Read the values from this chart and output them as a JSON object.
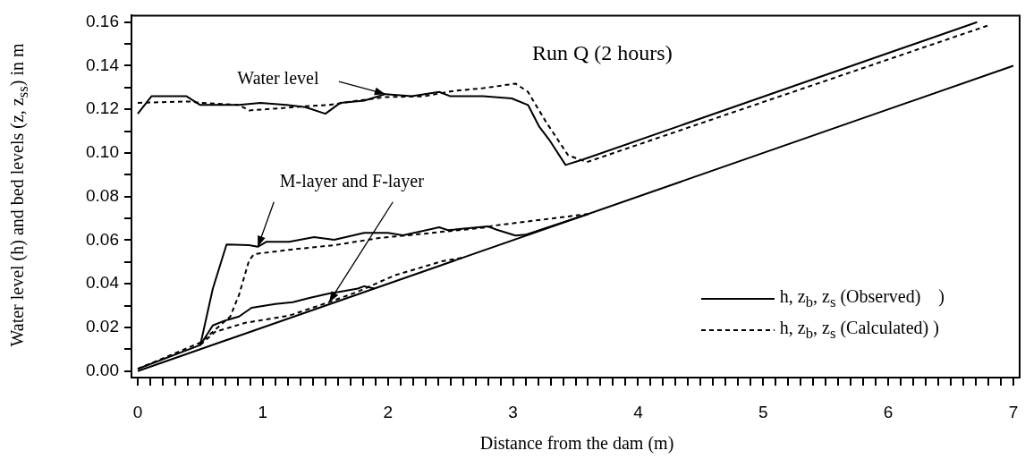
{
  "chart_data": {
    "type": "line",
    "title": "Run Q (2 hours)",
    "xlabel": "Distance from the dam (m)",
    "ylabel": "Water level (h) and bed levels (z, z$_{ss}$) in m",
    "xlim": [
      -0.05,
      7.05
    ],
    "ylim": [
      -0.003,
      0.163
    ],
    "xticks": [
      0,
      {
        "value": 0.1,
        "label": null
      },
      {
        "value": 0.2,
        "label": null
      },
      {
        "value": 0.3,
        "label": null
      },
      {
        "value": 0.4,
        "label": null
      },
      {
        "value": 0.5,
        "label": null
      },
      {
        "value": 0.6,
        "label": null
      },
      {
        "value": 0.7,
        "label": null
      },
      {
        "value": 0.8,
        "label": null
      },
      {
        "value": 0.9,
        "label": null
      },
      1,
      {
        "value": 1.1,
        "label": null
      },
      {
        "value": 1.2,
        "label": null
      },
      {
        "value": 1.3,
        "label": null
      },
      {
        "value": 1.4,
        "label": null
      },
      {
        "value": 1.5,
        "label": null
      },
      {
        "value": 1.6,
        "label": null
      },
      {
        "value": 1.7,
        "label": null
      },
      {
        "value": 1.8,
        "label": null
      },
      {
        "value": 1.9,
        "label": null
      },
      2,
      {
        "value": 2.1,
        "label": null
      },
      {
        "value": 2.2,
        "label": null
      },
      {
        "value": 2.3,
        "label": null
      },
      {
        "value": 2.4,
        "label": null
      },
      {
        "value": 2.5,
        "label": null
      },
      {
        "value": 2.6,
        "label": null
      },
      {
        "value": 2.7,
        "label": null
      },
      {
        "value": 2.8,
        "label": null
      },
      {
        "value": 2.9,
        "label": null
      },
      3,
      {
        "value": 3.1,
        "label": null
      },
      {
        "value": 3.2,
        "label": null
      },
      {
        "value": 3.3,
        "label": null
      },
      {
        "value": 3.4,
        "label": null
      },
      {
        "value": 3.5,
        "label": null
      },
      {
        "value": 3.6,
        "label": null
      },
      {
        "value": 3.7,
        "label": null
      },
      {
        "value": 3.8,
        "label": null
      },
      {
        "value": 3.9,
        "label": null
      },
      4,
      {
        "value": 4.1,
        "label": null
      },
      {
        "value": 4.2,
        "label": null
      },
      {
        "value": 4.3,
        "label": null
      },
      {
        "value": 4.4,
        "label": null
      },
      {
        "value": 4.5,
        "label": null
      },
      {
        "value": 4.6,
        "label": null
      },
      {
        "value": 4.7,
        "label": null
      },
      {
        "value": 4.8,
        "label": null
      },
      {
        "value": 4.9,
        "label": null
      },
      5,
      {
        "value": 5.1,
        "label": null
      },
      {
        "value": 5.2,
        "label": null
      },
      {
        "value": 5.3,
        "label": null
      },
      {
        "value": 5.4,
        "label": null
      },
      {
        "value": 5.5,
        "label": null
      },
      {
        "value": 5.6,
        "label": null
      },
      {
        "value": 5.7,
        "label": null
      },
      {
        "value": 5.8,
        "label": null
      },
      {
        "value": 5.9,
        "label": null
      },
      6,
      {
        "value": 6.1,
        "label": null
      },
      {
        "value": 6.2,
        "label": null
      },
      {
        "value": 6.3,
        "label": null
      },
      {
        "value": 6.4,
        "label": null
      },
      {
        "value": 6.5,
        "label": null
      },
      {
        "value": 6.6,
        "label": null
      },
      {
        "value": 6.7,
        "label": null
      },
      {
        "value": 6.8,
        "label": null
      },
      {
        "value": 6.9,
        "label": null
      },
      7
    ],
    "yticks": [
      {
        "value": 0,
        "label": "0.00"
      },
      {
        "value": 0.01,
        "label": null
      },
      {
        "value": 0.02,
        "label": "0.02"
      },
      {
        "value": 0.03,
        "label": null
      },
      {
        "value": 0.04,
        "label": "0.04"
      },
      {
        "value": 0.05,
        "label": null
      },
      {
        "value": 0.06,
        "label": "0.06"
      },
      {
        "value": 0.07,
        "label": null
      },
      {
        "value": 0.08,
        "label": "0.08"
      },
      {
        "value": 0.09,
        "label": null
      },
      {
        "value": 0.1,
        "label": "0.10"
      },
      {
        "value": 0.11,
        "label": null
      },
      {
        "value": 0.12,
        "label": "0.12"
      },
      {
        "value": 0.13,
        "label": null
      },
      {
        "value": 0.14,
        "label": "0.14"
      },
      {
        "value": 0.15,
        "label": null
      },
      {
        "value": 0.16,
        "label": "0.16"
      }
    ],
    "legend": "bottom right",
    "series": [
      {
        "name": "h, z$_{b}$, z$_{s}$ (Observed)    )",
        "color": "#000000",
        "line_style": "solid",
        "x": [
          0,
          0.11,
          0.39,
          0.5,
          0.81,
          0.98,
          1.19,
          1.34,
          1.5,
          1.62,
          1.81,
          1.98,
          2.19,
          2.41,
          2.5,
          2.76,
          2.99,
          3.12,
          3.21,
          3.29,
          3.42,
          3.56,
          6.71
        ],
        "values": [
          0.118,
          0.126,
          0.126,
          0.122,
          0.122,
          0.123,
          0.122,
          0.121,
          0.118,
          0.123,
          0.124,
          0.127,
          0.126,
          0.128,
          0.126,
          0.126,
          0.125,
          0.122,
          0.112,
          0.106,
          0.0945,
          0.097,
          0.16
        ]
      },
      {
        "name": "h, z$_{b}$, z$_{s}$ (Calculated) )",
        "color": "#000000",
        "line_style": "dashed",
        "x": [
          0,
          0.41,
          0.5,
          0.81,
          0.89,
          1.19,
          1.38,
          1.53,
          1.71,
          1.98,
          2.29,
          2.53,
          2.76,
          3.02,
          3.12,
          3.26,
          3.44,
          3.59,
          6.8
        ],
        "values": [
          0.123,
          0.1236,
          0.123,
          0.122,
          0.1195,
          0.1207,
          0.1216,
          0.122,
          0.1236,
          0.1256,
          0.126,
          0.1285,
          0.1297,
          0.1318,
          0.128,
          0.1146,
          0.099,
          0.0958,
          0.1585
        ]
      },
      {
        "color": "#000000",
        "line_style": "solid",
        "x": [
          0,
          7
        ],
        "values": [
          0,
          0.14
        ]
      },
      {
        "color": "#000000",
        "line_style": "solid",
        "x": [
          0,
          0.5,
          0.6,
          0.71,
          0.89,
          0.96,
          1.03,
          1.21,
          1.41,
          1.57,
          1.81,
          2.0,
          2.12,
          2.41,
          2.48,
          2.8,
          2.87,
          3.02,
          3.1,
          3.6
        ],
        "values": [
          0.001,
          0.0119,
          0.0377,
          0.058,
          0.0577,
          0.057,
          0.0593,
          0.0593,
          0.0614,
          0.0602,
          0.0634,
          0.0634,
          0.0622,
          0.0659,
          0.0646,
          0.0663,
          0.0648,
          0.0621,
          0.0625,
          0.072
        ]
      },
      {
        "color": "#000000",
        "line_style": "dashed",
        "x": [
          0,
          0.5,
          0.74,
          0.81,
          0.89,
          0.93,
          1.21,
          1.57,
          1.93,
          2.29,
          2.76,
          2.85,
          3.54,
          3.6
        ],
        "values": [
          0.001,
          0.013,
          0.025,
          0.035,
          0.0507,
          0.0536,
          0.0556,
          0.0577,
          0.061,
          0.063,
          0.0657,
          0.0667,
          0.0716,
          0.072
        ]
      },
      {
        "color": "#000000",
        "line_style": "solid",
        "x": [
          0.5,
          0.6,
          0.69,
          0.81,
          0.91,
          1.1,
          1.24,
          1.38,
          1.53,
          1.62,
          1.76,
          1.81,
          1.89
        ],
        "values": [
          0.0119,
          0.0209,
          0.023,
          0.025,
          0.029,
          0.0307,
          0.0316,
          0.0336,
          0.0356,
          0.0364,
          0.0378,
          0.0389,
          0.0378
        ]
      },
      {
        "color": "#000000",
        "line_style": "dashed",
        "x": [
          0.5,
          0.62,
          0.86,
          1.21,
          1.53,
          1.76,
          2.05,
          2.43,
          2.6
        ],
        "values": [
          0.012,
          0.018,
          0.0221,
          0.0254,
          0.0316,
          0.0364,
          0.0438,
          0.0503,
          0.052
        ]
      }
    ],
    "annotations": [
      {
        "text": "Water level",
        "x": 1.98,
        "y": 0.127
      },
      {
        "text": "M-layer and F-layer",
        "x": 0.96,
        "y": 0.057
      }
    ]
  }
}
